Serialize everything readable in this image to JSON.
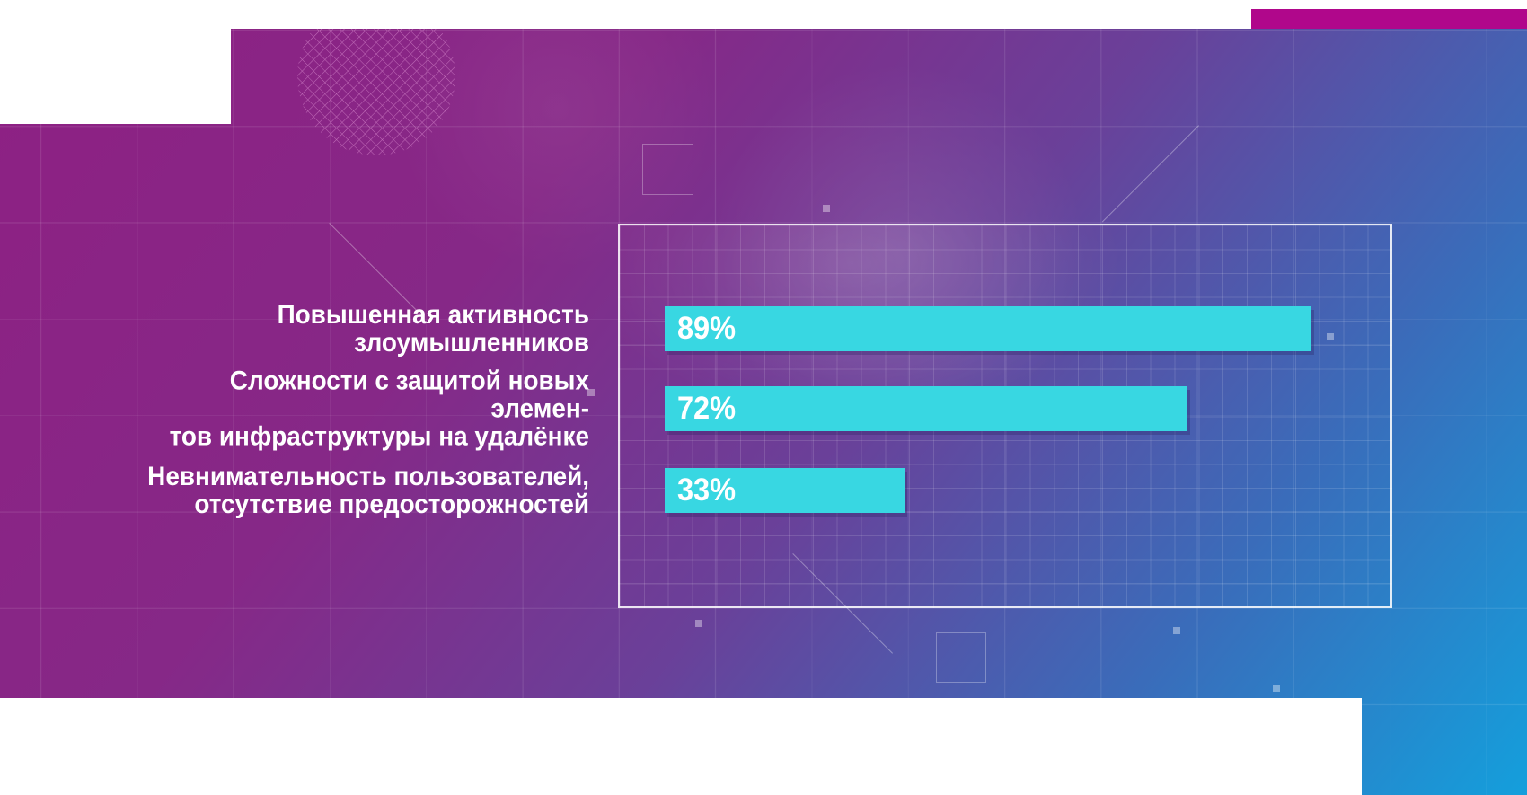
{
  "chart_data": {
    "type": "bar",
    "orientation": "horizontal",
    "unit": "%",
    "title": "",
    "xlabel": "",
    "ylabel": "",
    "xlim": [
      0,
      100
    ],
    "grid": true,
    "legend": false,
    "categories": [
      "Повышенная активность злоумышленников",
      "Сложности с защитой новых элементов инфраструктуры на удалёнке",
      "Невнимательность пользователей, отсутствие предосторожностей"
    ],
    "values": [
      89,
      72,
      33
    ],
    "items": [
      {
        "label_lines": [
          "Повышенная активность",
          "злоумышленников"
        ],
        "value": 89,
        "value_label": "89%"
      },
      {
        "label_lines": [
          "Сложности с защитой новых элемен-",
          "тов инфраструктуры на удалёнке"
        ],
        "value": 72,
        "value_label": "72%"
      },
      {
        "label_lines": [
          "Невнимательность пользователей,",
          "отсутствие предосторожностей"
        ],
        "value": 33,
        "value_label": "33%"
      }
    ],
    "bar_color": "#38d7e2",
    "label_color": "#ffffff"
  },
  "colors": {
    "accent_bar": "#b0078b",
    "bar_cyan": "#38d7e2",
    "gradient_top_left": "#8e2083",
    "gradient_bottom_right": "#149fdc",
    "text": "#ffffff"
  }
}
